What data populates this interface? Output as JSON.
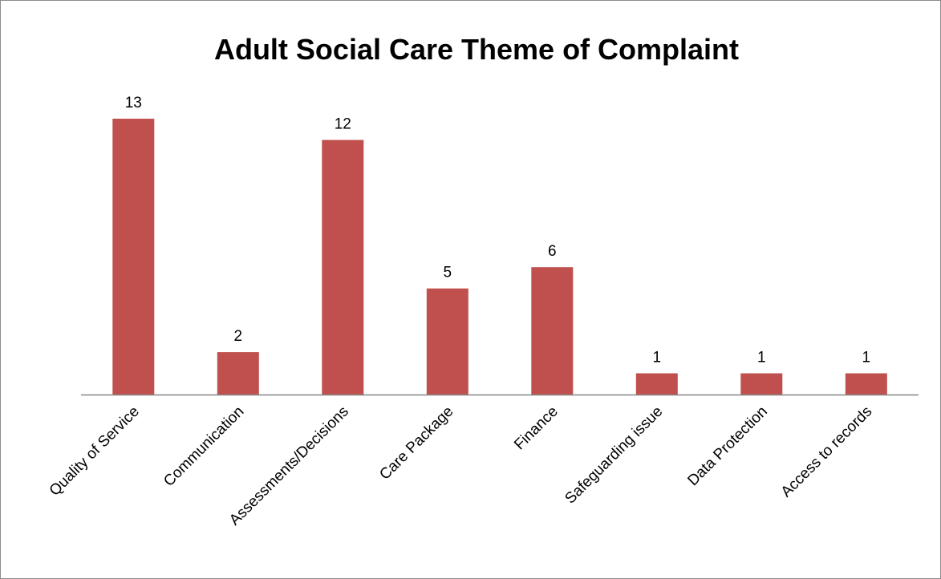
{
  "chart_data": {
    "type": "bar",
    "title": "Adult Social Care Theme of Complaint",
    "xlabel": "",
    "ylabel": "",
    "categories": [
      "Quality of Service",
      "Communication",
      "Assessments/Decisions",
      "Care Package",
      "Finance",
      "Safeguarding issue",
      "Data Protection",
      "Access to records"
    ],
    "values": [
      13,
      2,
      12,
      5,
      6,
      1,
      1,
      1
    ],
    "data_labels": [
      "13",
      "2",
      "12",
      "5",
      "6",
      "1",
      "1",
      "1"
    ],
    "ylim": [
      0,
      13
    ],
    "grid": false,
    "legend": "none",
    "bar_color": "#c0504d",
    "axis_color": "#868686"
  }
}
